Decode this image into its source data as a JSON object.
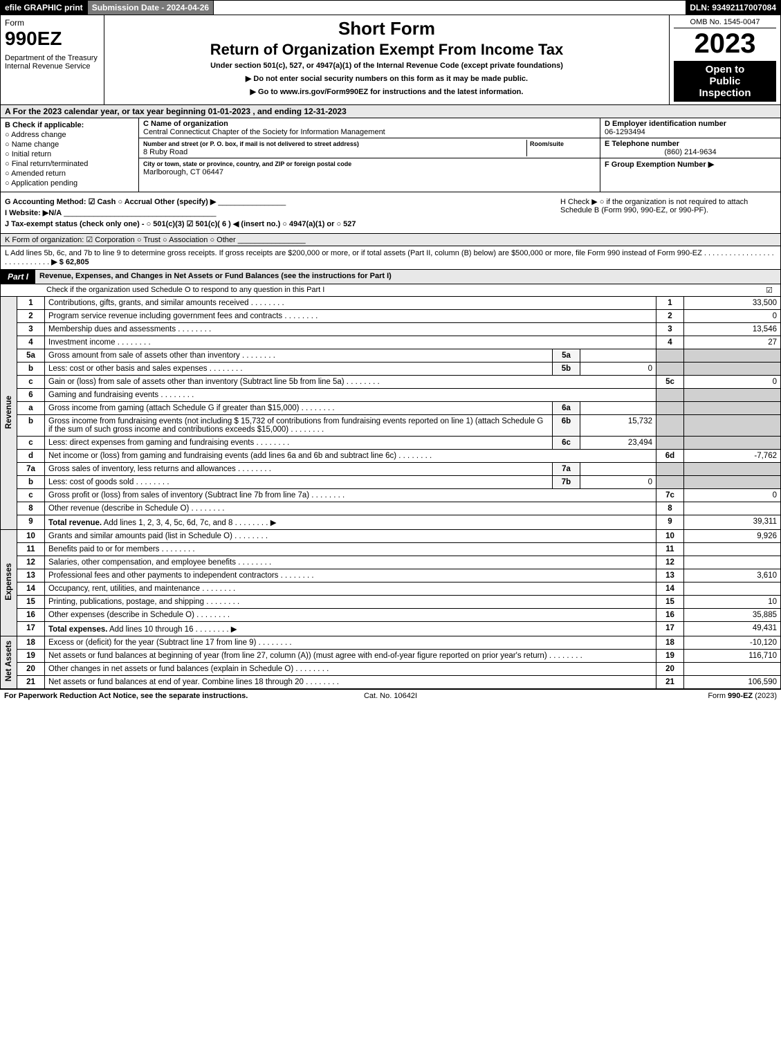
{
  "top_bar": {
    "efile": "efile GRAPHIC print",
    "submission": "Submission Date - 2024-04-26",
    "dln": "DLN: 93492117007084"
  },
  "header": {
    "form_label": "Form",
    "form_number": "990EZ",
    "department": "Department of the Treasury\nInternal Revenue Service",
    "short_form": "Short Form",
    "title": "Return of Organization Exempt From Income Tax",
    "under_section": "Under section 501(c), 527, or 4947(a)(1) of the Internal Revenue Code (except private foundations)",
    "line1": "▶ Do not enter social security numbers on this form as it may be made public.",
    "line2": "▶ Go to www.irs.gov/Form990EZ for instructions and the latest information.",
    "omb": "OMB No. 1545-0047",
    "year": "2023",
    "open_public": "Open to\nPublic\nInspection"
  },
  "section_a": "A  For the 2023 calendar year, or tax year beginning 01-01-2023 , and ending 12-31-2023",
  "section_b": {
    "header": "B  Check if applicable:",
    "items": [
      "Address change",
      "Name change",
      "Initial return",
      "Final return/terminated",
      "Amended return",
      "Application pending"
    ]
  },
  "section_c": {
    "name_label": "C Name of organization",
    "name": "Central Connecticut Chapter of the Society for Information Management",
    "street_label": "Number and street (or P. O. box, if mail is not delivered to street address)",
    "street": "8 Ruby Road",
    "room_label": "Room/suite",
    "city_label": "City or town, state or province, country, and ZIP or foreign postal code",
    "city": "Marlborough, CT  06447"
  },
  "section_de": {
    "d_label": "D Employer identification number",
    "d_value": "06-1293494",
    "e_label": "E Telephone number",
    "e_value": "(860) 214-9634",
    "f_label": "F Group Exemption Number  ▶"
  },
  "section_g": "G Accounting Method:  ☑ Cash  ○ Accrual  Other (specify) ▶",
  "section_h": "H  Check ▶  ○  if the organization is not required to attach Schedule B (Form 990, 990-EZ, or 990-PF).",
  "section_i": "I Website: ▶N/A",
  "section_j": "J Tax-exempt status (check only one) -  ○ 501(c)(3)  ☑  501(c)( 6 ) ◀ (insert no.)  ○  4947(a)(1) or  ○  527",
  "section_k": "K Form of organization:  ☑ Corporation  ○ Trust  ○ Association  ○ Other",
  "section_l": {
    "text": "L Add lines 5b, 6c, and 7b to line 9 to determine gross receipts. If gross receipts are $200,000 or more, or if total assets (Part II, column (B) below) are $500,000 or more, file Form 990 instead of Form 990-EZ",
    "amount": "▶ $ 62,805"
  },
  "part1": {
    "label": "Part I",
    "title": "Revenue, Expenses, and Changes in Net Assets or Fund Balances (see the instructions for Part I)",
    "check_o": "Check if the organization used Schedule O to respond to any question in this Part I",
    "check_o_mark": "☑"
  },
  "side_labels": {
    "revenue": "Revenue",
    "expenses": "Expenses",
    "netassets": "Net Assets"
  },
  "revenue_lines": [
    {
      "no": "1",
      "desc": "Contributions, gifts, grants, and similar amounts received",
      "rn": "1",
      "rv": "33,500"
    },
    {
      "no": "2",
      "desc": "Program service revenue including government fees and contracts",
      "rn": "2",
      "rv": "0"
    },
    {
      "no": "3",
      "desc": "Membership dues and assessments",
      "rn": "3",
      "rv": "13,546"
    },
    {
      "no": "4",
      "desc": "Investment income",
      "rn": "4",
      "rv": "27"
    },
    {
      "no": "5a",
      "desc": "Gross amount from sale of assets other than inventory",
      "sn": "5a",
      "sv": "",
      "shaded": true
    },
    {
      "no": "b",
      "desc": "Less: cost or other basis and sales expenses",
      "sn": "5b",
      "sv": "0",
      "shaded": true
    },
    {
      "no": "c",
      "desc": "Gain or (loss) from sale of assets other than inventory (Subtract line 5b from line 5a)",
      "rn": "5c",
      "rv": "0"
    },
    {
      "no": "6",
      "desc": "Gaming and fundraising events",
      "shaded": true
    },
    {
      "no": "a",
      "desc": "Gross income from gaming (attach Schedule G if greater than $15,000)",
      "sn": "6a",
      "sv": "",
      "shaded": true
    },
    {
      "no": "b",
      "desc": "Gross income from fundraising events (not including $  15,732 of contributions from fundraising events reported on line 1) (attach Schedule G if the sum of such gross income and contributions exceeds $15,000)",
      "sn": "6b",
      "sv": "15,732",
      "shaded": true
    },
    {
      "no": "c",
      "desc": "Less: direct expenses from gaming and fundraising events",
      "sn": "6c",
      "sv": "23,494",
      "shaded": true
    },
    {
      "no": "d",
      "desc": "Net income or (loss) from gaming and fundraising events (add lines 6a and 6b and subtract line 6c)",
      "rn": "6d",
      "rv": "-7,762"
    },
    {
      "no": "7a",
      "desc": "Gross sales of inventory, less returns and allowances",
      "sn": "7a",
      "sv": "",
      "shaded": true
    },
    {
      "no": "b",
      "desc": "Less: cost of goods sold",
      "sn": "7b",
      "sv": "0",
      "shaded": true
    },
    {
      "no": "c",
      "desc": "Gross profit or (loss) from sales of inventory (Subtract line 7b from line 7a)",
      "rn": "7c",
      "rv": "0"
    },
    {
      "no": "8",
      "desc": "Other revenue (describe in Schedule O)",
      "rn": "8",
      "rv": ""
    },
    {
      "no": "9",
      "desc": "Total revenue. Add lines 1, 2, 3, 4, 5c, 6d, 7c, and 8",
      "rn": "9",
      "rv": "39,311",
      "bold": true,
      "arrow": true
    }
  ],
  "expense_lines": [
    {
      "no": "10",
      "desc": "Grants and similar amounts paid (list in Schedule O)",
      "rn": "10",
      "rv": "9,926"
    },
    {
      "no": "11",
      "desc": "Benefits paid to or for members",
      "rn": "11",
      "rv": ""
    },
    {
      "no": "12",
      "desc": "Salaries, other compensation, and employee benefits",
      "rn": "12",
      "rv": ""
    },
    {
      "no": "13",
      "desc": "Professional fees and other payments to independent contractors",
      "rn": "13",
      "rv": "3,610"
    },
    {
      "no": "14",
      "desc": "Occupancy, rent, utilities, and maintenance",
      "rn": "14",
      "rv": ""
    },
    {
      "no": "15",
      "desc": "Printing, publications, postage, and shipping",
      "rn": "15",
      "rv": "10"
    },
    {
      "no": "16",
      "desc": "Other expenses (describe in Schedule O)",
      "rn": "16",
      "rv": "35,885"
    },
    {
      "no": "17",
      "desc": "Total expenses. Add lines 10 through 16",
      "rn": "17",
      "rv": "49,431",
      "bold": true,
      "arrow": true
    }
  ],
  "netasset_lines": [
    {
      "no": "18",
      "desc": "Excess or (deficit) for the year (Subtract line 17 from line 9)",
      "rn": "18",
      "rv": "-10,120"
    },
    {
      "no": "19",
      "desc": "Net assets or fund balances at beginning of year (from line 27, column (A)) (must agree with end-of-year figure reported on prior year's return)",
      "rn": "19",
      "rv": "116,710"
    },
    {
      "no": "20",
      "desc": "Other changes in net assets or fund balances (explain in Schedule O)",
      "rn": "20",
      "rv": ""
    },
    {
      "no": "21",
      "desc": "Net assets or fund balances at end of year. Combine lines 18 through 20",
      "rn": "21",
      "rv": "106,590"
    }
  ],
  "footer": {
    "left": "For Paperwork Reduction Act Notice, see the separate instructions.",
    "center": "Cat. No. 10642I",
    "right": "Form 990-EZ (2023)"
  }
}
